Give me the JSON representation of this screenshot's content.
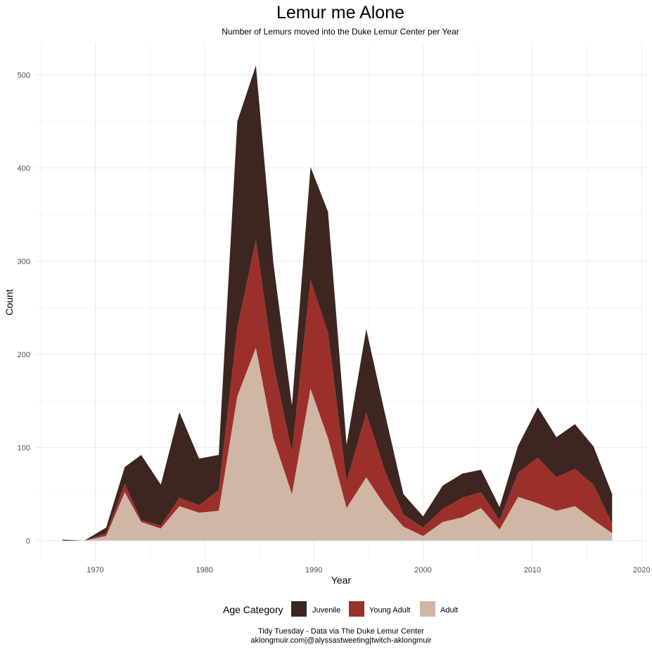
{
  "colors": {
    "juvenile": "#3d2620",
    "young_adult": "#9b302a",
    "adult": "#d0b7a5"
  },
  "chart_data": {
    "type": "area",
    "stacked": true,
    "title": "Lemur me Alone",
    "subtitle": "Number of Lemurs moved into the Duke Lemur Center per Year",
    "xlabel": "Year",
    "ylabel": "Count",
    "xlim": [
      1964.5,
      2020.5
    ],
    "ylim": [
      -22,
      535
    ],
    "x_ticks": [
      1970,
      1980,
      1990,
      2000,
      2010,
      2020
    ],
    "y_ticks": [
      0,
      100,
      200,
      300,
      400,
      500
    ],
    "grid": true,
    "legend_position": "bottom",
    "legend_title": "Age Category",
    "x": [
      1967,
      1969,
      1971,
      1972.7,
      1974.2,
      1976,
      1977.7,
      1979.5,
      1981.3,
      1983,
      1984.7,
      1986.3,
      1988,
      1989.7,
      1991.3,
      1993,
      1994.8,
      1996.5,
      1998.2,
      2000,
      2001.8,
      2003.6,
      2005.3,
      2007,
      2008.7,
      2010.5,
      2012.2,
      2013.9,
      2015.6,
      2017.3
    ],
    "series": [
      {
        "name": "Adult",
        "color_key": "adult",
        "values": [
          0,
          0,
          5,
          52,
          20,
          13,
          37,
          30,
          32,
          155,
          207,
          110,
          50,
          163,
          110,
          35,
          68,
          38,
          15,
          5,
          20,
          25,
          35,
          12,
          47,
          40,
          32,
          37,
          22,
          8
        ]
      },
      {
        "name": "Young Adult",
        "color_key": "young_adult",
        "values": [
          0,
          0,
          3,
          9,
          2,
          3,
          9,
          8,
          22,
          73,
          116,
          80,
          45,
          117,
          113,
          28,
          69,
          37,
          13,
          9,
          14,
          21,
          17,
          10,
          26,
          49,
          36,
          40,
          38,
          10
        ]
      },
      {
        "name": "Juvenile",
        "color_key": "juvenile",
        "values": [
          1,
          0,
          6,
          18,
          70,
          44,
          92,
          50,
          38,
          222,
          187,
          108,
          50,
          121,
          130,
          40,
          90,
          62,
          22,
          12,
          25,
          26,
          24,
          14,
          29,
          54,
          43,
          48,
          41,
          32
        ]
      }
    ],
    "legend_order": [
      "Juvenile",
      "Young Adult",
      "Adult"
    ]
  },
  "caption": {
    "line1": "Tidy Tuesday - Data via The Duke Lemur Center",
    "line2": "aklongmuir.com|@alyssastweeting|twitch-aklongmuir"
  }
}
